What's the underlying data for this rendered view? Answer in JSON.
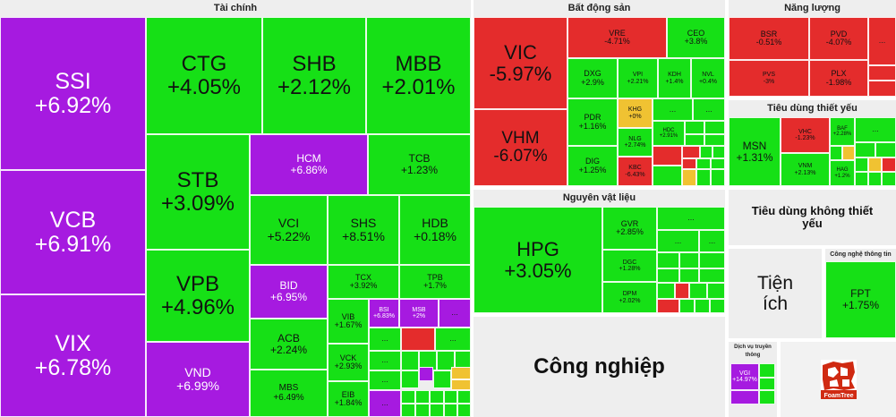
{
  "groups": {
    "tai_chinh": "Tài chính",
    "bat_dong_san": "Bất động sản",
    "nang_luong": "Năng lượng",
    "nguyen_vat_lieu": "Nguyên vật liệu",
    "tieu_dung_thiet_yeu": "Tiêu dùng thiết yếu",
    "tieu_dung_khong_thiet_yeu": "Tiêu dùng không thiết yếu",
    "tien_ich": "Tiện ích",
    "cong_nghe": "Công nghệ thông tin",
    "dich_vu": "Dịch vụ truyền thông",
    "cong_nghiep": "Công nghiệp"
  },
  "tiles": {
    "SSI": {
      "t": "SSI",
      "v": "+6.92%"
    },
    "VCB": {
      "t": "VCB",
      "v": "+6.91%"
    },
    "VIX": {
      "t": "VIX",
      "v": "+6.78%"
    },
    "CTG": {
      "t": "CTG",
      "v": "+4.05%"
    },
    "SHB": {
      "t": "SHB",
      "v": "+2.12%"
    },
    "MBB": {
      "t": "MBB",
      "v": "+2.01%"
    },
    "STB": {
      "t": "STB",
      "v": "+3.09%"
    },
    "VPB": {
      "t": "VPB",
      "v": "+4.96%"
    },
    "VND": {
      "t": "VND",
      "v": "+6.99%"
    },
    "HCM": {
      "t": "HCM",
      "v": "+6.86%"
    },
    "TCB": {
      "t": "TCB",
      "v": "+1.23%"
    },
    "VCI": {
      "t": "VCI",
      "v": "+5.22%"
    },
    "SHS": {
      "t": "SHS",
      "v": "+8.51%"
    },
    "HDB": {
      "t": "HDB",
      "v": "+0.18%"
    },
    "BID": {
      "t": "BID",
      "v": "+6.95%"
    },
    "TCX": {
      "t": "TCX",
      "v": "+3.92%"
    },
    "TPB": {
      "t": "TPB",
      "v": "+1.7%"
    },
    "ACB": {
      "t": "ACB",
      "v": "+2.24%"
    },
    "VIB": {
      "t": "VIB",
      "v": "+1.67%"
    },
    "BSI": {
      "t": "BSI",
      "v": "+6.83%"
    },
    "MSB": {
      "t": "MSB",
      "v": "+2%"
    },
    "VCK": {
      "t": "VCK",
      "v": "+2.93%"
    },
    "MBS": {
      "t": "MBS",
      "v": "+6.49%"
    },
    "EIB": {
      "t": "EIB",
      "v": "+1.84%"
    },
    "VIC": {
      "t": "VIC",
      "v": "-5.97%"
    },
    "VHM": {
      "t": "VHM",
      "v": "-6.07%"
    },
    "VRE": {
      "t": "VRE",
      "v": "-4.71%"
    },
    "CEO": {
      "t": "CEO",
      "v": "+3.8%"
    },
    "DXG": {
      "t": "DXG",
      "v": "+2.9%"
    },
    "VPI": {
      "t": "VPI",
      "v": "+2.21%"
    },
    "KDH": {
      "t": "KDH",
      "v": "+1.4%"
    },
    "NVL": {
      "t": "NVL",
      "v": "+0.4%"
    },
    "PDR": {
      "t": "PDR",
      "v": "+1.16%"
    },
    "KHG": {
      "t": "KHG",
      "v": "+0%"
    },
    "NLG": {
      "t": "NLG",
      "v": "+2.74%"
    },
    "HDC": {
      "t": "HDC",
      "v": "+2.91%"
    },
    "DIG": {
      "t": "DIG",
      "v": "+1.25%"
    },
    "KBC": {
      "t": "KBC",
      "v": "-6.43%"
    },
    "BSR": {
      "t": "BSR",
      "v": "-0.51%"
    },
    "PVD": {
      "t": "PVD",
      "v": "-4.07%"
    },
    "PVS": {
      "t": "PVS",
      "v": "-3%"
    },
    "PLX": {
      "t": "PLX",
      "v": "-1.98%"
    },
    "MSN": {
      "t": "MSN",
      "v": "+1.31%"
    },
    "VHC": {
      "t": "VHC",
      "v": "-1.23%"
    },
    "BAF": {
      "t": "BAF",
      "v": "+2.28%"
    },
    "VNM": {
      "t": "VNM",
      "v": "+2.13%"
    },
    "HAG": {
      "t": "HAG",
      "v": "+1.2%"
    },
    "HPG": {
      "t": "HPG",
      "v": "+3.05%"
    },
    "GVR": {
      "t": "GVR",
      "v": "+2.85%"
    },
    "DGC": {
      "t": "DGC",
      "v": "+1.28%"
    },
    "DPM": {
      "t": "DPM",
      "v": "+2.02%"
    },
    "FPT": {
      "t": "FPT",
      "v": "+1.75%"
    },
    "VGI": {
      "t": "VGI",
      "v": "+14.97%"
    }
  },
  "ellipsis": "...",
  "logo_text": "FoamTree",
  "colors": {
    "green": "#16e016",
    "red": "#e42c2c",
    "purple": "#a61ae0",
    "yellow": "#f0c232"
  }
}
